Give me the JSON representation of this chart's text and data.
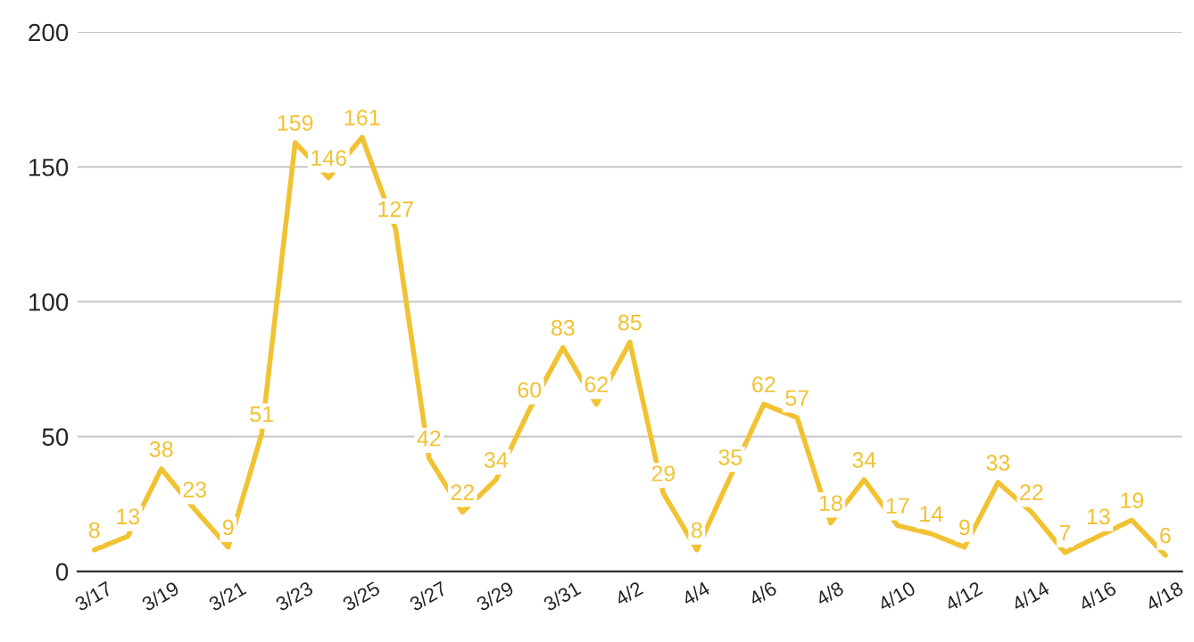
{
  "chart_data": {
    "type": "line",
    "categories": [
      "3/17",
      null,
      "3/19",
      null,
      "3/21",
      null,
      "3/23",
      null,
      "3/25",
      null,
      "3/27",
      null,
      "3/29",
      null,
      "3/31",
      null,
      "4/2",
      null,
      "4/4",
      null,
      "4/6",
      null,
      "4/8",
      null,
      "4/10",
      null,
      "4/12",
      null,
      "4/14",
      null,
      "4/16",
      null,
      "4/18"
    ],
    "series": [
      {
        "color": "#f1c232",
        "values": [
          8,
          13,
          38,
          23,
          9,
          51,
          159,
          146,
          161,
          127,
          42,
          22,
          34,
          60,
          83,
          62,
          85,
          29,
          8,
          35,
          62,
          57,
          18,
          34,
          17,
          14,
          9,
          33,
          22,
          7,
          13,
          19,
          6
        ]
      }
    ],
    "ylim": [
      0,
      200
    ],
    "yticks": [
      0,
      50,
      100,
      150,
      200
    ],
    "grid": "y",
    "data_labels": true,
    "marker": "none",
    "line_style": "solid",
    "legend": false
  }
}
